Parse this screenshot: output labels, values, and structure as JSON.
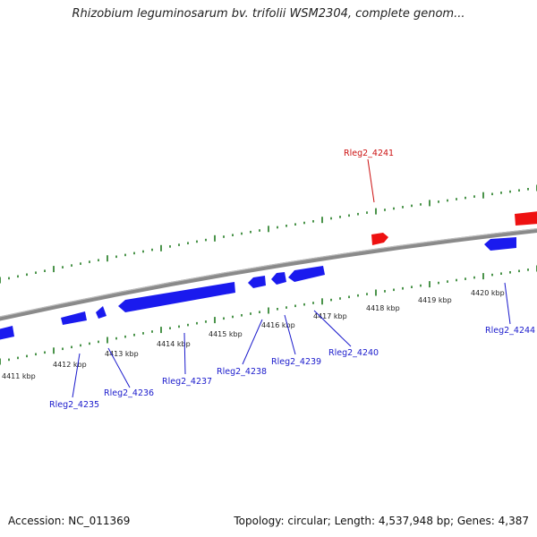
{
  "title": "Rhizobium leguminosarum bv. trifolii WSM2304, complete genom...",
  "footer": {
    "accession": "Accession: NC_011369",
    "summary": "Topology: circular; Length: 4,537,948 bp; Genes: 4,387"
  },
  "colors": {
    "forward_gene": "#ee1111",
    "reverse_gene": "#1a1aee",
    "forward_label": "#cc1111",
    "reverse_label": "#1a1acc",
    "tick": "#1e7a1e",
    "backbone": "#8a8a8a"
  },
  "scale": {
    "labels": [
      "4411 kbp",
      "4412 kbp",
      "4413 kbp",
      "4414 kbp",
      "4415 kbp",
      "4416 kbp",
      "4417 kbp",
      "4418 kbp",
      "4419 kbp",
      "4420 kbp"
    ]
  },
  "genes": {
    "forward": [
      {
        "name": "Rleg2_4241"
      }
    ],
    "reverse": [
      {
        "name": "Rleg2_4235"
      },
      {
        "name": "Rleg2_4236"
      },
      {
        "name": "Rleg2_4237"
      },
      {
        "name": "Rleg2_4238"
      },
      {
        "name": "Rleg2_4239"
      },
      {
        "name": "Rleg2_4240"
      },
      {
        "name": "Rleg2_4244"
      }
    ]
  }
}
